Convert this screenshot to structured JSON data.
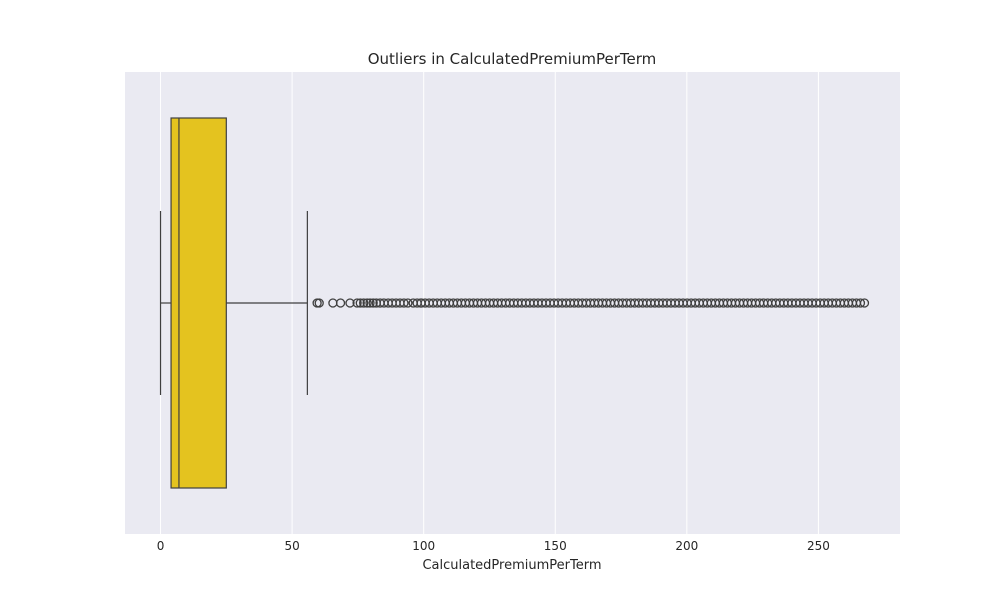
{
  "colors": {
    "plot_background": "#eaeaf2",
    "grid": "#ffffff",
    "box_fill": "#e4c31f",
    "line": "#3f3f3f"
  },
  "chart_data": {
    "type": "boxplot",
    "orientation": "horizontal",
    "title": "Outliers in CalculatedPremiumPerTerm",
    "xlabel": "CalculatedPremiumPerTerm",
    "ylabel": "",
    "xlim": [
      -13.5,
      281
    ],
    "xticks": [
      0,
      50,
      100,
      150,
      200,
      250
    ],
    "tick_labels": [
      "0",
      "50",
      "100",
      "150",
      "200",
      "250"
    ],
    "grid": true,
    "box": {
      "whisker_low": 0,
      "q1": 4.0,
      "median": 7.0,
      "q3": 25.0,
      "whisker_high": 55.8
    },
    "outliers": {
      "sparse": [
        59.5,
        60.3,
        65.5,
        68.4,
        72.0,
        74.7,
        75.9,
        77.2,
        78.5,
        79.6,
        80.8,
        82.0,
        83.4,
        84.9,
        86.5,
        88.0,
        89.5,
        91.0,
        92.5,
        94.0,
        96.0,
        97.5,
        99.0
      ],
      "dense_from": 99,
      "dense_to": 267.5
    }
  }
}
